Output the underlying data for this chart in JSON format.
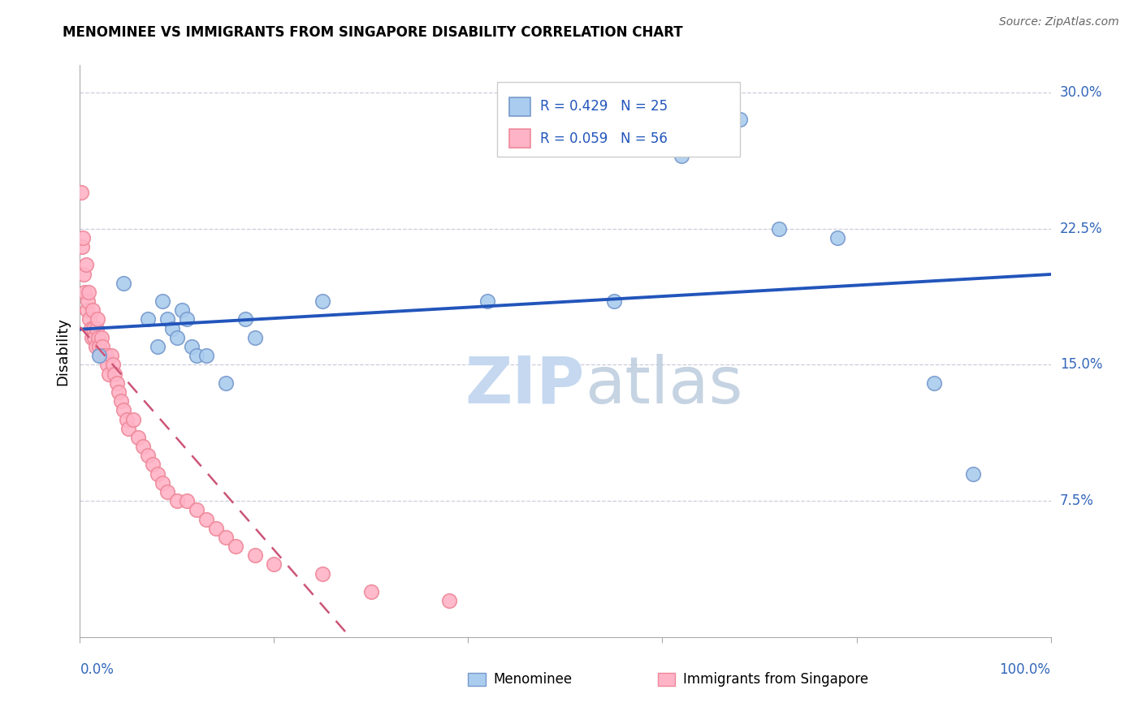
{
  "title": "MENOMINEE VS IMMIGRANTS FROM SINGAPORE DISABILITY CORRELATION CHART",
  "source": "Source: ZipAtlas.com",
  "ylabel": "Disability",
  "watermark_zip": "ZIP",
  "watermark_atlas": "atlas",
  "legend1_r": "R = 0.429",
  "legend1_n": "N = 25",
  "legend2_r": "R = 0.059",
  "legend2_n": "N = 56",
  "yticks": [
    0.075,
    0.15,
    0.225,
    0.3
  ],
  "ytick_labels": [
    "7.5%",
    "15.0%",
    "22.5%",
    "30.0%"
  ],
  "xlim": [
    0.0,
    1.0
  ],
  "ylim": [
    0.0,
    0.315
  ],
  "blue_scatter_face": "#AACCEE",
  "blue_scatter_edge": "#7799CC",
  "pink_scatter_face": "#FFB3C6",
  "pink_scatter_edge": "#EE8899",
  "blue_line_color": "#2255BB",
  "pink_line_color": "#CC5577",
  "axis_label_color": "#3366BB",
  "grid_color": "#CCCCDD",
  "menominee_x": [
    0.02,
    0.045,
    0.07,
    0.08,
    0.085,
    0.09,
    0.095,
    0.1,
    0.105,
    0.11,
    0.115,
    0.12,
    0.13,
    0.15,
    0.17,
    0.18,
    0.25,
    0.42,
    0.55,
    0.62,
    0.68,
    0.72,
    0.78,
    0.88,
    0.92
  ],
  "menominee_y": [
    0.155,
    0.195,
    0.175,
    0.16,
    0.185,
    0.175,
    0.17,
    0.165,
    0.18,
    0.175,
    0.16,
    0.155,
    0.155,
    0.14,
    0.175,
    0.165,
    0.185,
    0.185,
    0.185,
    0.265,
    0.285,
    0.225,
    0.22,
    0.14,
    0.09
  ],
  "singapore_x": [
    0.001,
    0.002,
    0.003,
    0.004,
    0.005,
    0.006,
    0.007,
    0.008,
    0.009,
    0.01,
    0.011,
    0.012,
    0.013,
    0.014,
    0.015,
    0.016,
    0.017,
    0.018,
    0.019,
    0.02,
    0.021,
    0.022,
    0.023,
    0.025,
    0.027,
    0.028,
    0.03,
    0.032,
    0.034,
    0.036,
    0.038,
    0.04,
    0.042,
    0.045,
    0.048,
    0.05,
    0.055,
    0.06,
    0.065,
    0.07,
    0.075,
    0.08,
    0.085,
    0.09,
    0.1,
    0.11,
    0.12,
    0.13,
    0.14,
    0.15,
    0.16,
    0.18,
    0.2,
    0.25,
    0.3,
    0.38
  ],
  "singapore_y": [
    0.245,
    0.215,
    0.22,
    0.2,
    0.19,
    0.205,
    0.18,
    0.185,
    0.19,
    0.175,
    0.17,
    0.165,
    0.18,
    0.17,
    0.165,
    0.16,
    0.17,
    0.175,
    0.165,
    0.16,
    0.155,
    0.165,
    0.16,
    0.155,
    0.155,
    0.15,
    0.145,
    0.155,
    0.15,
    0.145,
    0.14,
    0.135,
    0.13,
    0.125,
    0.12,
    0.115,
    0.12,
    0.11,
    0.105,
    0.1,
    0.095,
    0.09,
    0.085,
    0.08,
    0.075,
    0.075,
    0.07,
    0.065,
    0.06,
    0.055,
    0.05,
    0.045,
    0.04,
    0.035,
    0.025,
    0.02
  ]
}
